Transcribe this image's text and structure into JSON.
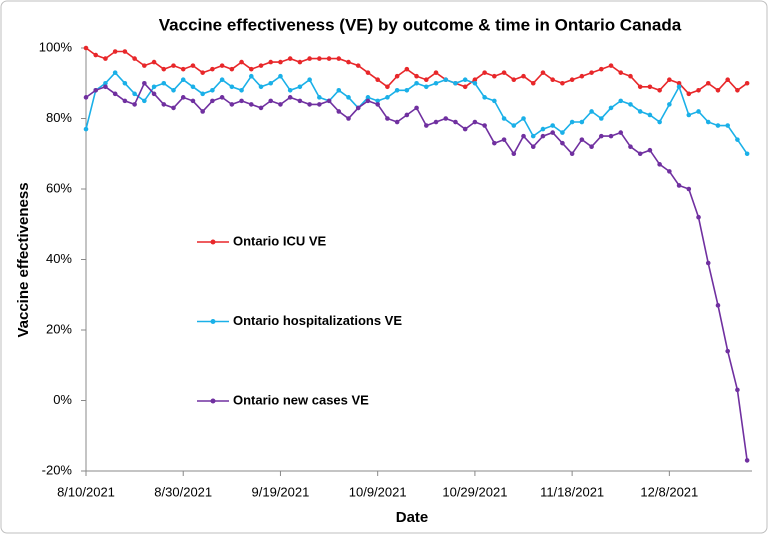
{
  "chart_data": {
    "type": "line",
    "title": "Vaccine effectiveness (VE) by outcome & time in Ontario Canada",
    "x_label": "Date",
    "y_label": "Vaccine effectiveness",
    "x": [
      "8/10/2021",
      "8/12/2021",
      "8/14/2021",
      "8/16/2021",
      "8/18/2021",
      "8/20/2021",
      "8/22/2021",
      "8/24/2021",
      "8/26/2021",
      "8/28/2021",
      "8/30/2021",
      "9/1/2021",
      "9/3/2021",
      "9/5/2021",
      "9/7/2021",
      "9/9/2021",
      "9/11/2021",
      "9/13/2021",
      "9/15/2021",
      "9/17/2021",
      "9/19/2021",
      "9/21/2021",
      "9/23/2021",
      "9/25/2021",
      "9/27/2021",
      "9/29/2021",
      "10/1/2021",
      "10/3/2021",
      "10/5/2021",
      "10/7/2021",
      "10/9/2021",
      "10/11/2021",
      "10/13/2021",
      "10/15/2021",
      "10/17/2021",
      "10/19/2021",
      "10/21/2021",
      "10/23/2021",
      "10/25/2021",
      "10/27/2021",
      "10/29/2021",
      "10/31/2021",
      "11/2/2021",
      "11/4/2021",
      "11/6/2021",
      "11/8/2021",
      "11/10/2021",
      "11/12/2021",
      "11/14/2021",
      "11/16/2021",
      "11/18/2021",
      "11/20/2021",
      "11/22/2021",
      "11/24/2021",
      "11/26/2021",
      "11/28/2021",
      "11/30/2021",
      "12/2/2021",
      "12/4/2021",
      "12/6/2021",
      "12/8/2021",
      "12/10/2021",
      "12/12/2021",
      "12/14/2021",
      "12/16/2021",
      "12/18/2021",
      "12/20/2021",
      "12/22/2021",
      "12/24/2021"
    ],
    "series": [
      {
        "name": "Ontario ICU VE",
        "color": "#e8272a",
        "values": [
          100,
          98,
          97,
          99,
          99,
          97,
          95,
          96,
          94,
          95,
          94,
          95,
          93,
          94,
          95,
          94,
          96,
          94,
          95,
          96,
          96,
          97,
          96,
          97,
          97,
          97,
          97,
          96,
          95,
          93,
          91,
          89,
          92,
          94,
          92,
          91,
          93,
          91,
          90,
          89,
          91,
          93,
          92,
          93,
          91,
          92,
          90,
          93,
          91,
          90,
          91,
          92,
          93,
          94,
          95,
          93,
          92,
          89,
          89,
          88,
          91,
          90,
          87,
          88,
          90,
          88,
          91,
          88,
          90
        ]
      },
      {
        "name": "Ontario hospitalizations VE",
        "color": "#1ab0e8",
        "values": [
          77,
          88,
          90,
          93,
          90,
          87,
          85,
          89,
          90,
          88,
          91,
          89,
          87,
          88,
          91,
          89,
          88,
          92,
          89,
          90,
          92,
          88,
          89,
          91,
          86,
          85,
          88,
          86,
          83,
          86,
          85,
          86,
          88,
          88,
          90,
          89,
          90,
          91,
          90,
          91,
          90,
          86,
          85,
          80,
          78,
          80,
          75,
          77,
          78,
          76,
          79,
          79,
          82,
          80,
          83,
          85,
          84,
          82,
          81,
          79,
          84,
          89,
          81,
          82,
          79,
          78,
          78,
          74,
          70
        ]
      },
      {
        "name": "Ontario new cases VE",
        "color": "#7030a0",
        "values": [
          86,
          88,
          89,
          87,
          85,
          84,
          90,
          87,
          84,
          83,
          86,
          85,
          82,
          85,
          86,
          84,
          85,
          84,
          83,
          85,
          84,
          86,
          85,
          84,
          84,
          85,
          82,
          80,
          83,
          85,
          84,
          80,
          79,
          81,
          83,
          78,
          79,
          80,
          79,
          77,
          79,
          78,
          73,
          74,
          70,
          75,
          72,
          75,
          76,
          73,
          70,
          74,
          72,
          75,
          75,
          76,
          72,
          70,
          71,
          67,
          65,
          61,
          60,
          52,
          39,
          27,
          14,
          3,
          -17
        ]
      }
    ],
    "xlim": [
      "8/10/2021",
      "12/25/2021"
    ],
    "xticks": [
      "8/10/2021",
      "8/30/2021",
      "9/19/2021",
      "10/9/2021",
      "10/29/2021",
      "11/18/2021",
      "12/8/2021"
    ],
    "ylim": [
      -20,
      100
    ],
    "yticks": [
      {
        "value": -20,
        "label": "-20%"
      },
      {
        "value": 0,
        "label": "0%"
      },
      {
        "value": 20,
        "label": "20%"
      },
      {
        "value": 40,
        "label": "40%"
      },
      {
        "value": 60,
        "label": "60%"
      },
      {
        "value": 80,
        "label": "80%"
      },
      {
        "value": 100,
        "label": "100%"
      }
    ],
    "legend": "center-left"
  }
}
